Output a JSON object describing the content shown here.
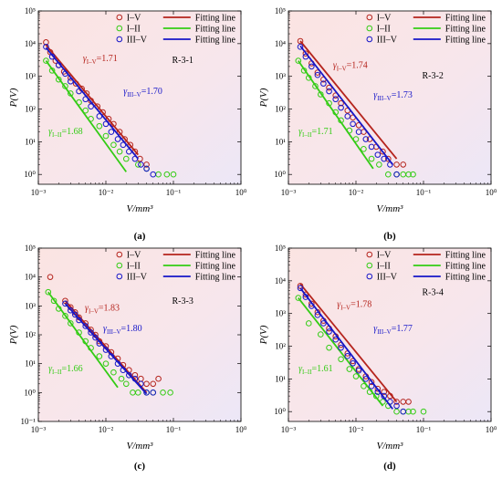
{
  "legend_entries": [
    {
      "marker_label": "I–V",
      "line_label": "Fitting line",
      "color": "#b5241d"
    },
    {
      "marker_label": "I–II",
      "line_label": "Fitting line",
      "color": "#33cc14"
    },
    {
      "marker_label": "III–V",
      "line_label": "Fitting line",
      "color": "#1616c8"
    }
  ],
  "chart_data": [
    {
      "type": "scatter",
      "scale": "log-log",
      "panel_label": "(a)",
      "sample_label": "R-3-1",
      "xlabel": "V/mm³",
      "ylabel": "P(V)",
      "xlim": [
        0.001,
        1
      ],
      "ylim": [
        0.5,
        100000
      ],
      "xticks": [
        "10⁻³",
        "10⁻²",
        "10⁻¹",
        "10⁰"
      ],
      "yticks": [
        "10⁰",
        "10¹",
        "10²",
        "10³",
        "10⁴",
        "10⁵"
      ],
      "annotations": [
        {
          "text": "γ",
          "sub": "I–V",
          "value": "=1.71",
          "series": "I–V"
        },
        {
          "text": "γ",
          "sub": "III–V",
          "value": "=1.70",
          "series": "III–V"
        },
        {
          "text": "γ",
          "sub": "I–II",
          "value": "=1.68",
          "series": "I–II"
        }
      ],
      "series": [
        {
          "name": "I–V",
          "fit": {
            "x": [
              0.0013,
              0.03
            ],
            "y": [
              9000,
              4
            ]
          },
          "points": {
            "x": [
              0.0013,
              0.0015,
              0.0018,
              0.002,
              0.0024,
              0.003,
              0.0036,
              0.0044,
              0.0052,
              0.006,
              0.0075,
              0.009,
              0.011,
              0.013,
              0.016,
              0.019,
              0.023,
              0.027,
              0.032,
              0.04
            ],
            "y": [
              11000,
              5500,
              3000,
              2200,
              1400,
              900,
              600,
              420,
              300,
              180,
              120,
              80,
              50,
              35,
              20,
              12,
              8,
              5,
              3,
              2
            ]
          }
        },
        {
          "name": "I–II",
          "fit": {
            "x": [
              0.0013,
              0.02
            ],
            "y": [
              3000,
              1.2
            ]
          },
          "points": {
            "x": [
              0.0013,
              0.0016,
              0.002,
              0.0025,
              0.003,
              0.004,
              0.005,
              0.006,
              0.008,
              0.01,
              0.013,
              0.016,
              0.02,
              0.03,
              0.04,
              0.06,
              0.08,
              0.1
            ],
            "y": [
              3000,
              1500,
              800,
              500,
              300,
              160,
              90,
              50,
              30,
              15,
              8,
              5,
              3,
              2,
              1.5,
              1,
              1,
              1
            ]
          }
        },
        {
          "name": "III–V",
          "fit": {
            "x": [
              0.0013,
              0.03
            ],
            "y": [
              7500,
              3
            ]
          },
          "points": {
            "x": [
              0.0013,
              0.0016,
              0.002,
              0.0025,
              0.003,
              0.004,
              0.005,
              0.006,
              0.008,
              0.01,
              0.012,
              0.015,
              0.018,
              0.022,
              0.027,
              0.033,
              0.04,
              0.05
            ],
            "y": [
              8000,
              4000,
              2200,
              1200,
              700,
              350,
              200,
              120,
              60,
              35,
              20,
              12,
              8,
              5,
              3,
              2,
              1.5,
              1
            ]
          }
        }
      ]
    },
    {
      "type": "scatter",
      "scale": "log-log",
      "panel_label": "(b)",
      "sample_label": "R-3-2",
      "xlabel": "V/mm³",
      "ylabel": "P(V)",
      "xlim": [
        0.001,
        1
      ],
      "ylim": [
        0.5,
        100000
      ],
      "xticks": [
        "10⁻³",
        "10⁻²",
        "10⁻¹",
        "10⁰"
      ],
      "yticks": [
        "10⁰",
        "10¹",
        "10²",
        "10³",
        "10⁴",
        "10⁵"
      ],
      "annotations": [
        {
          "text": "γ",
          "sub": "I–V",
          "value": "=1.74",
          "series": "I–V"
        },
        {
          "text": "γ",
          "sub": "III–V",
          "value": "=1.73",
          "series": "III–V"
        },
        {
          "text": "γ",
          "sub": "I–II",
          "value": "=1.71",
          "series": "I–II"
        }
      ],
      "series": [
        {
          "name": "I–V",
          "fit": {
            "x": [
              0.0015,
              0.04
            ],
            "y": [
              12000,
              3
            ]
          },
          "points": {
            "x": [
              0.0015,
              0.0018,
              0.0022,
              0.0027,
              0.0033,
              0.004,
              0.005,
              0.006,
              0.0075,
              0.009,
              0.011,
              0.013,
              0.016,
              0.02,
              0.025,
              0.03,
              0.04,
              0.05
            ],
            "y": [
              12000,
              5000,
              2500,
              1300,
              800,
              450,
              260,
              150,
              90,
              55,
              32,
              20,
              12,
              7,
              5,
              3,
              2,
              2
            ]
          }
        },
        {
          "name": "I–II",
          "fit": {
            "x": [
              0.0014,
              0.018
            ],
            "y": [
              3000,
              1.5
            ]
          },
          "points": {
            "x": [
              0.0014,
              0.0017,
              0.002,
              0.0025,
              0.003,
              0.004,
              0.005,
              0.006,
              0.008,
              0.01,
              0.013,
              0.017,
              0.022,
              0.03,
              0.04,
              0.05,
              0.06,
              0.07
            ],
            "y": [
              3000,
              1500,
              900,
              500,
              280,
              150,
              80,
              45,
              22,
              12,
              6,
              3,
              2,
              1,
              1,
              1,
              1,
              1
            ]
          }
        },
        {
          "name": "III–V",
          "fit": {
            "x": [
              0.0015,
              0.035
            ],
            "y": [
              8500,
              2
            ]
          },
          "points": {
            "x": [
              0.0015,
              0.0018,
              0.0022,
              0.0027,
              0.0033,
              0.004,
              0.005,
              0.006,
              0.0075,
              0.009,
              0.011,
              0.014,
              0.017,
              0.021,
              0.026,
              0.032,
              0.04
            ],
            "y": [
              8000,
              4000,
              2000,
              1100,
              600,
              350,
              200,
              110,
              60,
              35,
              20,
              12,
              7,
              4,
              3,
              2,
              1
            ]
          }
        }
      ]
    },
    {
      "type": "scatter",
      "scale": "log-log",
      "panel_label": "(c)",
      "sample_label": "R-3-3",
      "xlabel": "V/mm³",
      "ylabel": "P(V)",
      "xlim": [
        0.001,
        1
      ],
      "ylim": [
        0.1,
        100000
      ],
      "xticks": [
        "10⁻³",
        "10⁻²",
        "10⁻¹",
        "10⁰"
      ],
      "yticks": [
        "10⁻¹",
        "10⁰",
        "10¹",
        "10²",
        "10³",
        "10⁴",
        "10⁵"
      ],
      "annotations": [
        {
          "text": "γ",
          "sub": "I–V",
          "value": "=1.83",
          "series": "I–V"
        },
        {
          "text": "γ",
          "sub": "III–V",
          "value": "=1.80",
          "series": "III–V"
        },
        {
          "text": "γ",
          "sub": "I–II",
          "value": "=1.66",
          "series": "I–II"
        }
      ],
      "series": [
        {
          "name": "I–V",
          "fit": {
            "x": [
              0.0025,
              0.04
            ],
            "y": [
              1500,
              1
            ]
          },
          "points": {
            "x": [
              0.0015,
              0.0025,
              0.003,
              0.0035,
              0.004,
              0.005,
              0.006,
              0.007,
              0.008,
              0.01,
              0.012,
              0.015,
              0.018,
              0.022,
              0.027,
              0.033,
              0.04,
              0.05,
              0.06
            ],
            "y": [
              10000,
              1500,
              900,
              600,
              400,
              250,
              150,
              100,
              60,
              40,
              25,
              15,
              9,
              6,
              4,
              3,
              2,
              2,
              3
            ]
          }
        },
        {
          "name": "I–II",
          "fit": {
            "x": [
              0.0014,
              0.015
            ],
            "y": [
              3000,
              1.5
            ]
          },
          "points": {
            "x": [
              0.0014,
              0.0017,
              0.002,
              0.0025,
              0.003,
              0.004,
              0.005,
              0.006,
              0.008,
              0.01,
              0.013,
              0.017,
              0.02,
              0.025,
              0.03,
              0.04,
              0.05,
              0.07,
              0.09
            ],
            "y": [
              3000,
              1500,
              800,
              450,
              250,
              120,
              60,
              35,
              18,
              10,
              5,
              3,
              2,
              1,
              1,
              1,
              1,
              1,
              1
            ]
          }
        },
        {
          "name": "III–V",
          "fit": {
            "x": [
              0.0025,
              0.04
            ],
            "y": [
              1200,
              0.9
            ]
          },
          "points": {
            "x": [
              0.0025,
              0.003,
              0.0035,
              0.004,
              0.005,
              0.006,
              0.007,
              0.008,
              0.01,
              0.012,
              0.015,
              0.018,
              0.022,
              0.027,
              0.033,
              0.04,
              0.05
            ],
            "y": [
              1200,
              700,
              500,
              320,
              200,
              120,
              80,
              50,
              30,
              18,
              10,
              6,
              4,
              3,
              2,
              1,
              1
            ]
          }
        }
      ]
    },
    {
      "type": "scatter",
      "scale": "log-log",
      "panel_label": "(d)",
      "sample_label": "R-3-4",
      "xlabel": "V/mm³",
      "ylabel": "P(V)",
      "xlim": [
        0.001,
        1
      ],
      "ylim": [
        0.5,
        100000
      ],
      "xticks": [
        "10⁻³",
        "10⁻²",
        "10⁻¹",
        "10⁰"
      ],
      "yticks": [
        "10⁰",
        "10¹",
        "10²",
        "10³",
        "10⁴",
        "10⁵"
      ],
      "annotations": [
        {
          "text": "γ",
          "sub": "I–V",
          "value": "=1.78",
          "series": "I–V"
        },
        {
          "text": "γ",
          "sub": "III–V",
          "value": "=1.77",
          "series": "III–V"
        },
        {
          "text": "γ",
          "sub": "I–II",
          "value": "=1.61",
          "series": "I–II"
        }
      ],
      "series": [
        {
          "name": "I–V",
          "fit": {
            "x": [
              0.0015,
              0.04
            ],
            "y": [
              8000,
              2
            ]
          },
          "points": {
            "x": [
              0.0015,
              0.0018,
              0.0022,
              0.0027,
              0.0033,
              0.004,
              0.005,
              0.006,
              0.0075,
              0.009,
              0.011,
              0.014,
              0.017,
              0.021,
              0.026,
              0.032,
              0.04,
              0.05,
              0.06
            ],
            "y": [
              7000,
              3800,
              2000,
              1100,
              600,
              350,
              200,
              110,
              60,
              35,
              20,
              12,
              8,
              5,
              4,
              3,
              2,
              2,
              2
            ]
          }
        },
        {
          "name": "I–II",
          "fit": {
            "x": [
              0.0014,
              0.025
            ],
            "y": [
              3000,
              1.5
            ]
          },
          "points": {
            "x": [
              0.0014,
              0.002,
              0.003,
              0.004,
              0.006,
              0.008,
              0.01,
              0.013,
              0.016,
              0.02,
              0.025,
              0.03,
              0.04,
              0.05,
              0.06,
              0.07,
              0.1
            ],
            "y": [
              3000,
              500,
              230,
              90,
              40,
              20,
              12,
              6,
              4,
              3,
              2,
              1.5,
              1,
              1,
              1,
              1,
              1
            ]
          }
        },
        {
          "name": "III–V",
          "fit": {
            "x": [
              0.0015,
              0.035
            ],
            "y": [
              6000,
              1.2
            ]
          },
          "points": {
            "x": [
              0.0015,
              0.0018,
              0.0022,
              0.0027,
              0.0033,
              0.004,
              0.005,
              0.006,
              0.0075,
              0.009,
              0.011,
              0.014,
              0.017,
              0.021,
              0.026,
              0.032,
              0.04,
              0.05
            ],
            "y": [
              6000,
              3200,
              1700,
              900,
              500,
              280,
              160,
              90,
              50,
              30,
              18,
              10,
              6,
              4,
              3,
              2,
              1.5,
              1
            ]
          }
        }
      ]
    }
  ]
}
